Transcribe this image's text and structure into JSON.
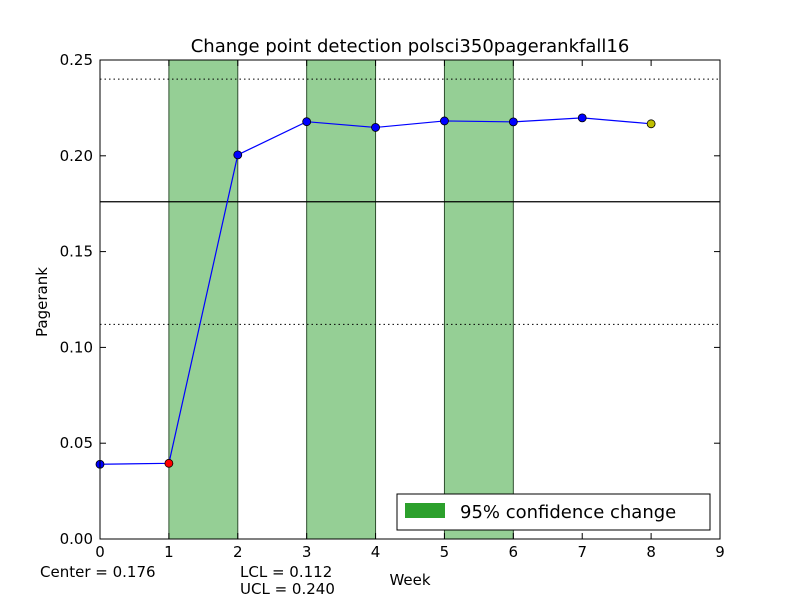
{
  "chart_data": {
    "type": "line",
    "title": "Change point detection polsci350pagerankfall16",
    "xlabel": "Week",
    "ylabel": "Pagerank",
    "xlim": [
      0,
      9
    ],
    "ylim": [
      0.0,
      0.25
    ],
    "xticks": [
      0,
      1,
      2,
      3,
      4,
      5,
      6,
      7,
      8,
      9
    ],
    "yticks": [
      "0.00",
      "0.05",
      "0.10",
      "0.15",
      "0.20",
      "0.25"
    ],
    "grid": false,
    "series": [
      {
        "x": [
          0,
          1,
          2,
          3,
          4,
          5,
          6,
          7,
          8
        ],
        "values": [
          0.039,
          0.0395,
          0.2005,
          0.2178,
          0.2148,
          0.2182,
          0.2177,
          0.2198,
          0.2167
        ],
        "color": "#0000ff",
        "marker_colors": [
          "#0000ff",
          "#ff0000",
          "#0000ff",
          "#0000ff",
          "#0000ff",
          "#0000ff",
          "#0000ff",
          "#0000ff",
          "#bfbf00"
        ]
      }
    ],
    "center_line": 0.176,
    "control_limits": [
      0.112,
      0.24
    ],
    "change_intervals": [
      [
        1,
        2
      ],
      [
        3,
        4
      ],
      [
        5,
        6
      ]
    ],
    "change_color": "#2ca02c",
    "legend": {
      "label": "95% confidence change",
      "position": "lower-right"
    },
    "annotations": {
      "center": "Center = 0.176",
      "lcl": "LCL = 0.112",
      "ucl": "UCL = 0.240"
    }
  }
}
